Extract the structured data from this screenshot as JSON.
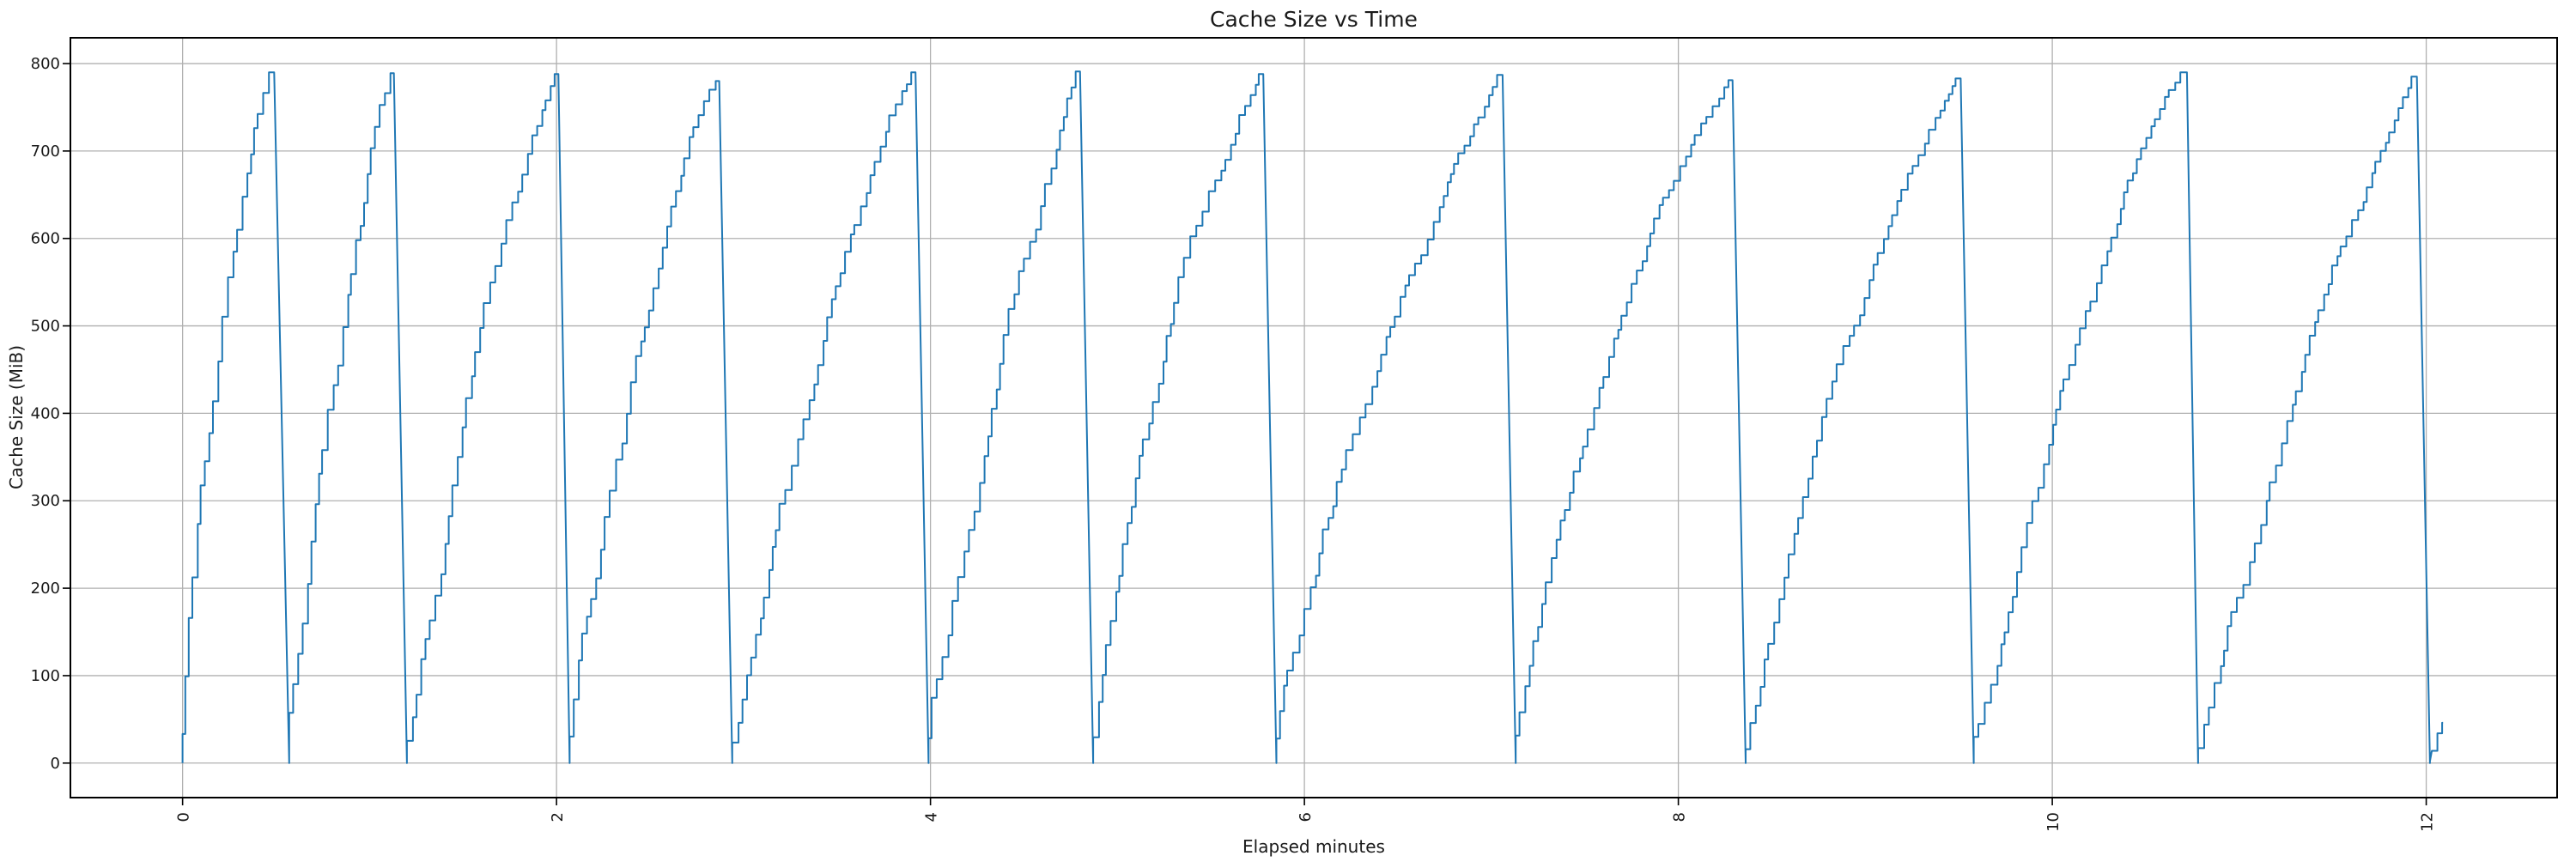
{
  "figure": {
    "title": "Cache Size vs Time",
    "xlabel": "Elapsed minutes",
    "ylabel": "Cache Size (MiB)"
  },
  "colors": {
    "line": "#1f77b4",
    "grid": "#b0b0b0",
    "spine": "#000000",
    "text": "#1a1a1a",
    "background": "#ffffff"
  },
  "chart_data": {
    "type": "line",
    "title": "Cache Size vs Time",
    "xlabel": "Elapsed minutes",
    "ylabel": "Cache Size (MiB)",
    "x_unit": "minutes",
    "y_unit": "MiB",
    "xlim": [
      -0.6,
      12.7
    ],
    "ylim": [
      -39.5,
      829.5
    ],
    "x_ticks": [
      0,
      2,
      4,
      6,
      8,
      10,
      12
    ],
    "y_ticks": [
      0,
      100,
      200,
      300,
      400,
      500,
      600,
      700,
      800
    ],
    "x_tick_rotation_deg": 90,
    "grid": true,
    "legend": false,
    "line_color": "#1f77b4",
    "pattern": "sawtooth staircase: cache fills in small steps from ~0 MiB to ~790 MiB, then rapidly evicts back to ~0; 12 full cycles over ~12.1 minutes plus a small partial rise at the end",
    "cycles": [
      {
        "start_min": 0.0,
        "peak_min": 0.49,
        "peak_mib": 790
      },
      {
        "start_min": 0.57,
        "peak_min": 1.13,
        "peak_mib": 789
      },
      {
        "start_min": 1.2,
        "peak_min": 2.01,
        "peak_mib": 788
      },
      {
        "start_min": 2.07,
        "peak_min": 2.87,
        "peak_mib": 780
      },
      {
        "start_min": 2.94,
        "peak_min": 3.92,
        "peak_mib": 790
      },
      {
        "start_min": 3.99,
        "peak_min": 4.8,
        "peak_mib": 791
      },
      {
        "start_min": 4.87,
        "peak_min": 5.78,
        "peak_mib": 788
      },
      {
        "start_min": 5.85,
        "peak_min": 7.06,
        "peak_mib": 787
      },
      {
        "start_min": 7.13,
        "peak_min": 8.29,
        "peak_mib": 781
      },
      {
        "start_min": 8.36,
        "peak_min": 9.51,
        "peak_mib": 783
      },
      {
        "start_min": 9.58,
        "peak_min": 10.72,
        "peak_mib": 790
      },
      {
        "start_min": 10.78,
        "peak_min": 11.95,
        "peak_mib": 785
      }
    ],
    "trough_mib": 0,
    "drop_duration_min": 0.07,
    "tail_points_min_mib": [
      [
        12.02,
        2
      ],
      [
        12.03,
        14
      ],
      [
        12.06,
        14
      ],
      [
        12.06,
        34
      ],
      [
        12.085,
        34
      ],
      [
        12.085,
        46
      ],
      [
        12.09,
        46
      ]
    ]
  }
}
